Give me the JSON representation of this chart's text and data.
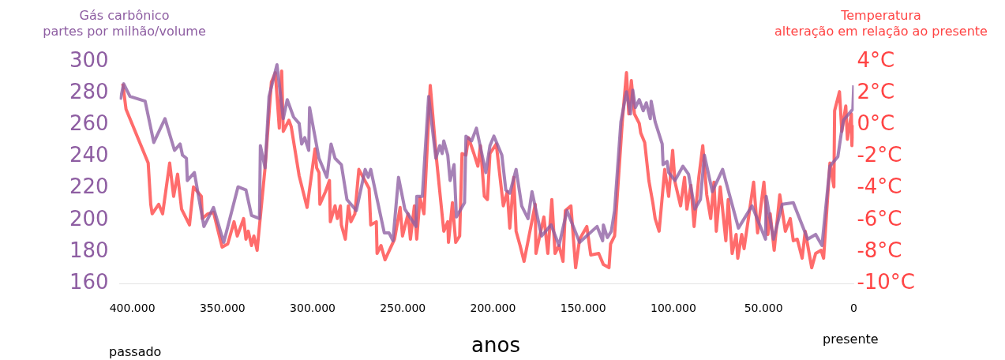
{
  "chart_data": {
    "type": "line",
    "ylabel": "Gás carbônico\npartes por milhão/volume",
    "y2label": "Temperatura\nalteração em relação ao presente",
    "xlabel": "anos",
    "annotations": [
      "passado",
      "presente"
    ],
    "xlim": [
      407000,
      0
    ],
    "xticks": [
      {
        "value": 400000,
        "label": "400.000"
      },
      {
        "value": 350000,
        "label": "350.000"
      },
      {
        "value": 300000,
        "label": "300.000"
      },
      {
        "value": 250000,
        "label": "250.000"
      },
      {
        "value": 200000,
        "label": "200.000"
      },
      {
        "value": 150000,
        "label": "150.000"
      },
      {
        "value": 100000,
        "label": "100.000"
      },
      {
        "value": 50000,
        "label": "50.000"
      },
      {
        "value": 0,
        "label": "0"
      }
    ],
    "ylim": [
      160,
      300
    ],
    "yticks": [
      160,
      180,
      200,
      220,
      240,
      260,
      280,
      300
    ],
    "y2lim": [
      -10,
      4
    ],
    "y2ticks": [
      {
        "value": -10,
        "label": "-10°C"
      },
      {
        "value": -8,
        "label": "-8°C"
      },
      {
        "value": -6,
        "label": "-6°C"
      },
      {
        "value": -4,
        "label": "-4°C"
      },
      {
        "value": -2,
        "label": "-2°C"
      },
      {
        "value": 0,
        "label": "0°C"
      },
      {
        "value": 2,
        "label": "2°C"
      },
      {
        "value": 4,
        "label": "4°C"
      }
    ],
    "grid": false,
    "legend": false,
    "marker": "none",
    "line_style": "solid",
    "series": [
      {
        "color": "#8e5ea2",
        "axis": "y",
        "x": [
          406600,
          404800,
          401300,
          392900,
          388100,
          381900,
          376600,
          373500,
          372200,
          370000,
          369500,
          365600,
          360300,
          355000,
          349300,
          341400,
          337000,
          333900,
          329500,
          329000,
          326400,
          324200,
          319800,
          316300,
          314100,
          310600,
          307500,
          306100,
          304400,
          302200,
          301700,
          296500,
          292100,
          289800,
          287600,
          284100,
          281000,
          275800,
          270900,
          269200,
          267800,
          260300,
          257700,
          255500,
          252400,
          248900,
          242700,
          242300,
          239200,
          235700,
          231700,
          229500,
          228200,
          227300,
          225100,
          223800,
          221600,
          220300,
          215800,
          215000,
          211900,
          209200,
          204000,
          201700,
          199500,
          195100,
          192900,
          190700,
          187200,
          184100,
          180600,
          178400,
          173100,
          167800,
          163400,
          159000,
          152000,
          142300,
          139200,
          138800,
          136600,
          134400,
          132600,
          129100,
          126000,
          123800,
          122500,
          121100,
          118900,
          116700,
          115000,
          112800,
          112300,
          110100,
          106200,
          105700,
          103500,
          102600,
          99100,
          94700,
          91600,
          88100,
          85000,
          82800,
          78400,
          72700,
          63900,
          56400,
          48900,
          48500,
          44500,
          39600,
          33500,
          25500,
          21100,
          17600,
          13200,
          8800,
          7000,
          5700,
          500,
          0
        ],
        "values": [
          276,
          286,
          278,
          275,
          249,
          264,
          244,
          248,
          241,
          239,
          225,
          230,
          196,
          208,
          186,
          221,
          219,
          203,
          201,
          247,
          233,
          278,
          298,
          264,
          276,
          265,
          261,
          248,
          252,
          244,
          271,
          239,
          227,
          248,
          239,
          235,
          213,
          206,
          232,
          227,
          232,
          192,
          192,
          187,
          227,
          207,
          196,
          215,
          215,
          278,
          239,
          247,
          242,
          250,
          241,
          225,
          235,
          202,
          211,
          253,
          250,
          258,
          230,
          247,
          253,
          241,
          219,
          217,
          232,
          209,
          201,
          218,
          190,
          197,
          184,
          206,
          186,
          196,
          187,
          197,
          189,
          193,
          206,
          262,
          281,
          267,
          282,
          271,
          276,
          269,
          274,
          264,
          275,
          262,
          248,
          235,
          237,
          230,
          225,
          234,
          229,
          207,
          213,
          241,
          218,
          232,
          195,
          209,
          188,
          215,
          188,
          210,
          211,
          188,
          191,
          184,
          234,
          240,
          254,
          263,
          270,
          285
        ]
      },
      {
        "color": "#ff4444",
        "axis": "y2",
        "x": [
          405300,
          403500,
          391200,
          389800,
          389000,
          385400,
          383200,
          379300,
          377100,
          374900,
          372700,
          368300,
          366100,
          361700,
          361200,
          358100,
          355000,
          350200,
          347100,
          343600,
          341800,
          338300,
          337000,
          335700,
          333900,
          332600,
          330800,
          326400,
          322900,
          320700,
          318500,
          317200,
          316300,
          313200,
          311900,
          307500,
          303100,
          298700,
          297800,
          296500,
          296000,
          292900,
          290700,
          290200,
          287600,
          286300,
          284600,
          284100,
          281900,
          280200,
          278800,
          276600,
          274400,
          268700,
          267800,
          264700,
          264300,
          262100,
          259900,
          254600,
          251500,
          250200,
          247100,
          245800,
          243600,
          242300,
          240500,
          238300,
          234800,
          231300,
          227300,
          225100,
          224700,
          222500,
          220700,
          218500,
          217200,
          215000,
          213600,
          210600,
          208400,
          207000,
          204800,
          203100,
          201700,
          198200,
          194300,
          192100,
          190700,
          188500,
          187200,
          185000,
          182800,
          176600,
          176200,
          171800,
          169600,
          167400,
          165600,
          163400,
          161200,
          159900,
          156800,
          154200,
          152000,
          148000,
          145800,
          141400,
          138800,
          135700,
          134800,
          132600,
          128200,
          126000,
          124700,
          123300,
          121600,
          118900,
          118100,
          115900,
          113600,
          111400,
          110100,
          107900,
          104800,
          102600,
          100400,
          99100,
          96000,
          93800,
          92500,
          90300,
          88500,
          85900,
          83700,
          81500,
          79300,
          77500,
          76200,
          74000,
          70900,
          69600,
          67400,
          65200,
          64300,
          62100,
          60800,
          55500,
          53300,
          49800,
          47600,
          46300,
          44100,
          41000,
          37900,
          35200,
          33500,
          31300,
          28600,
          26900,
          23300,
          21100,
          18100,
          16700,
          13200,
          11000,
          10600,
          7900,
          6600,
          4400,
          3500,
          1300,
          1000,
          0
        ],
        "values": [
          2.6,
          1.0,
          -2.4,
          -5.0,
          -5.6,
          -5.0,
          -5.6,
          -2.4,
          -4.5,
          -3.1,
          -5.3,
          -6.3,
          -3.9,
          -4.5,
          -5.9,
          -5.6,
          -5.5,
          -7.7,
          -7.5,
          -6.1,
          -7.0,
          -5.9,
          -7.2,
          -6.7,
          -7.6,
          -7.0,
          -7.9,
          -2.7,
          2.7,
          3.3,
          -0.2,
          3.4,
          -0.4,
          0.3,
          -0.1,
          -3.2,
          -5.2,
          -1.5,
          -2.7,
          -3.0,
          -5.0,
          -4.2,
          -3.5,
          -6.1,
          -5.1,
          -5.9,
          -5.1,
          -6.3,
          -7.2,
          -5.1,
          -6.1,
          -5.6,
          -2.8,
          -4.0,
          -6.3,
          -6.1,
          -8.1,
          -7.6,
          -8.5,
          -7.2,
          -5.2,
          -7.0,
          -5.6,
          -7.2,
          -5.1,
          -7.2,
          -4.6,
          -5.6,
          2.5,
          -2.2,
          -6.7,
          -6.1,
          -7.4,
          -4.9,
          -7.4,
          -7.0,
          -1.8,
          -1.9,
          -0.8,
          -1.8,
          -2.6,
          -1.3,
          -4.5,
          -4.7,
          -1.8,
          -1.2,
          -5.1,
          -4.2,
          -6.5,
          -3.3,
          -6.7,
          -7.6,
          -8.6,
          -5.0,
          -8.1,
          -5.8,
          -8.1,
          -4.7,
          -8.1,
          -7.6,
          -8.6,
          -5.4,
          -5.1,
          -9.0,
          -7.2,
          -6.4,
          -8.2,
          -8.1,
          -8.8,
          -9.0,
          -7.5,
          -7.0,
          0.4,
          3.3,
          0.7,
          2.8,
          0.7,
          0.1,
          -0.5,
          -1.1,
          -3.5,
          -4.9,
          -5.9,
          -6.7,
          -2.8,
          -4.5,
          -1.6,
          -3.6,
          -5.1,
          -3.3,
          -5.3,
          -3.8,
          -6.4,
          -3.3,
          -1.3,
          -4.4,
          -5.9,
          -3.6,
          -6.7,
          -3.9,
          -7.3,
          -4.7,
          -8.1,
          -6.9,
          -8.4,
          -6.9,
          -7.8,
          -3.6,
          -6.8,
          -3.6,
          -6.9,
          -5.6,
          -7.9,
          -4.4,
          -6.7,
          -5.9,
          -7.3,
          -7.2,
          -8.4,
          -6.7,
          -9.0,
          -8.1,
          -7.9,
          -8.4,
          -2.4,
          -3.9,
          0.9,
          2.1,
          -0.4,
          1.2,
          -0.9,
          0.7,
          -1.3,
          0.0
        ]
      }
    ]
  }
}
